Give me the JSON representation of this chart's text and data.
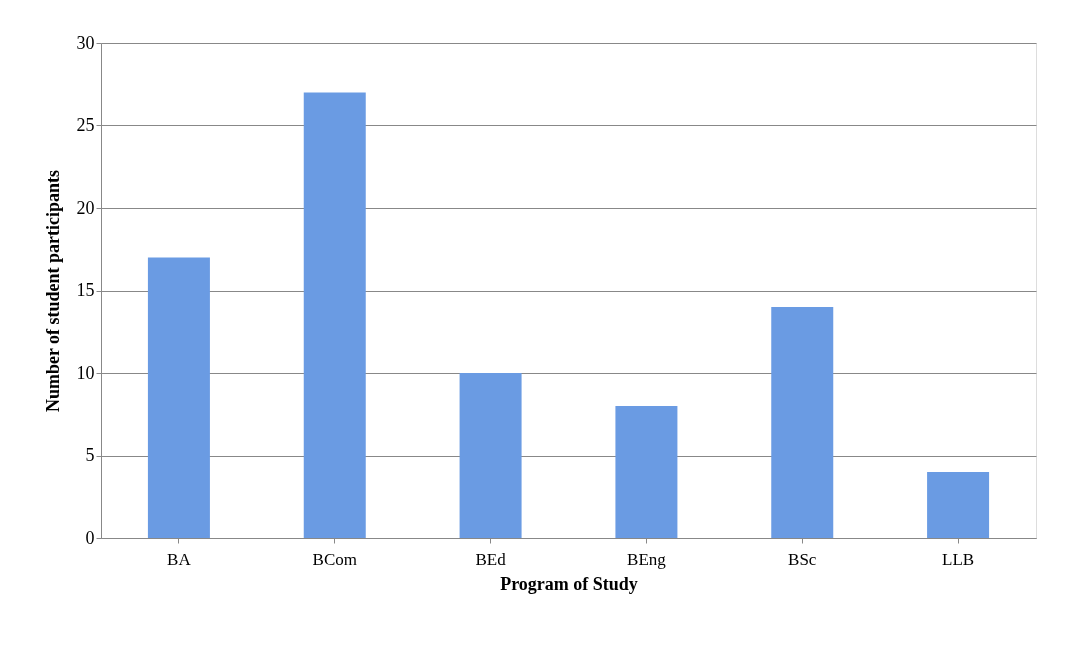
{
  "chart_data": {
    "type": "bar",
    "xlabel": "Program of Study",
    "ylabel": "Number of student participants",
    "categories": [
      "BA",
      "BCom",
      "BEd",
      "BEng",
      "BSc",
      "LLB"
    ],
    "values": [
      17,
      27,
      10,
      8,
      14,
      4
    ],
    "color": "#6a9be3",
    "ylim": [
      0,
      30
    ],
    "yticks": [
      0,
      5,
      10,
      15,
      20,
      25,
      30
    ],
    "grid": "y"
  }
}
